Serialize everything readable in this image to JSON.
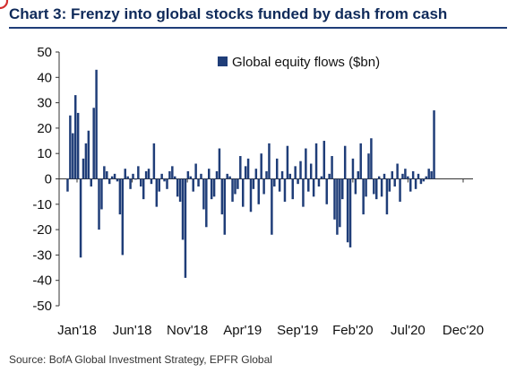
{
  "title": "Chart 3: Frenzy into global stocks funded by dash from cash",
  "source": "Source: BofA Global Investment Strategy, EPFR Global",
  "chart_data": {
    "type": "bar",
    "title": "Chart 3: Frenzy into global stocks funded by dash from cash",
    "xlabel": "",
    "ylabel": "",
    "ylim": [
      -50,
      50
    ],
    "yticks": [
      -50,
      -40,
      -30,
      -20,
      -10,
      0,
      10,
      20,
      30,
      40,
      50
    ],
    "xtick_labels": [
      "Jan'18",
      "Jun'18",
      "Nov'18",
      "Apr'19",
      "Sep'19",
      "Feb'20",
      "Jul'20",
      "Dec'20"
    ],
    "legend": {
      "position": "top-right"
    },
    "grid": false,
    "highlight": {
      "index": 150,
      "marker": "circle",
      "color": "#d32f2f"
    },
    "series": [
      {
        "name": "Global equity flows ($bn)",
        "color": "#1f3d78",
        "values": [
          -5,
          25,
          18,
          33,
          26,
          -31,
          8,
          14,
          19,
          -3,
          28,
          43,
          -20,
          -12,
          5,
          3,
          -2,
          1,
          2,
          -1,
          -14,
          -30,
          4,
          1,
          -4,
          2,
          0,
          5,
          -3,
          -8,
          3,
          4,
          -2,
          14,
          -11,
          -5,
          2,
          -1,
          -4,
          3,
          5,
          1,
          -7,
          -9,
          -24,
          -39,
          3,
          1,
          -5,
          6,
          -3,
          2,
          -12,
          -19,
          4,
          -8,
          -7,
          3,
          12,
          -14,
          -22,
          2,
          1,
          -9,
          -6,
          -4,
          9,
          -11,
          5,
          8,
          -13,
          -4,
          4,
          -10,
          10,
          -6,
          3,
          14,
          -22,
          -3,
          8,
          -5,
          3,
          -9,
          13,
          2,
          -8,
          5,
          -2,
          7,
          -11,
          12,
          -5,
          6,
          -7,
          14,
          -3,
          1,
          15,
          -10,
          2,
          9,
          -16,
          -22,
          -19,
          -8,
          13,
          -25,
          -27,
          8,
          -6,
          3,
          14,
          -14,
          -7,
          10,
          16,
          -6,
          -8,
          1,
          -7,
          2,
          -14,
          -5,
          3,
          -3,
          6,
          -9,
          2,
          4,
          1,
          -5,
          3,
          -4,
          2,
          -2,
          -1,
          1,
          4,
          3,
          27
        ]
      }
    ]
  }
}
